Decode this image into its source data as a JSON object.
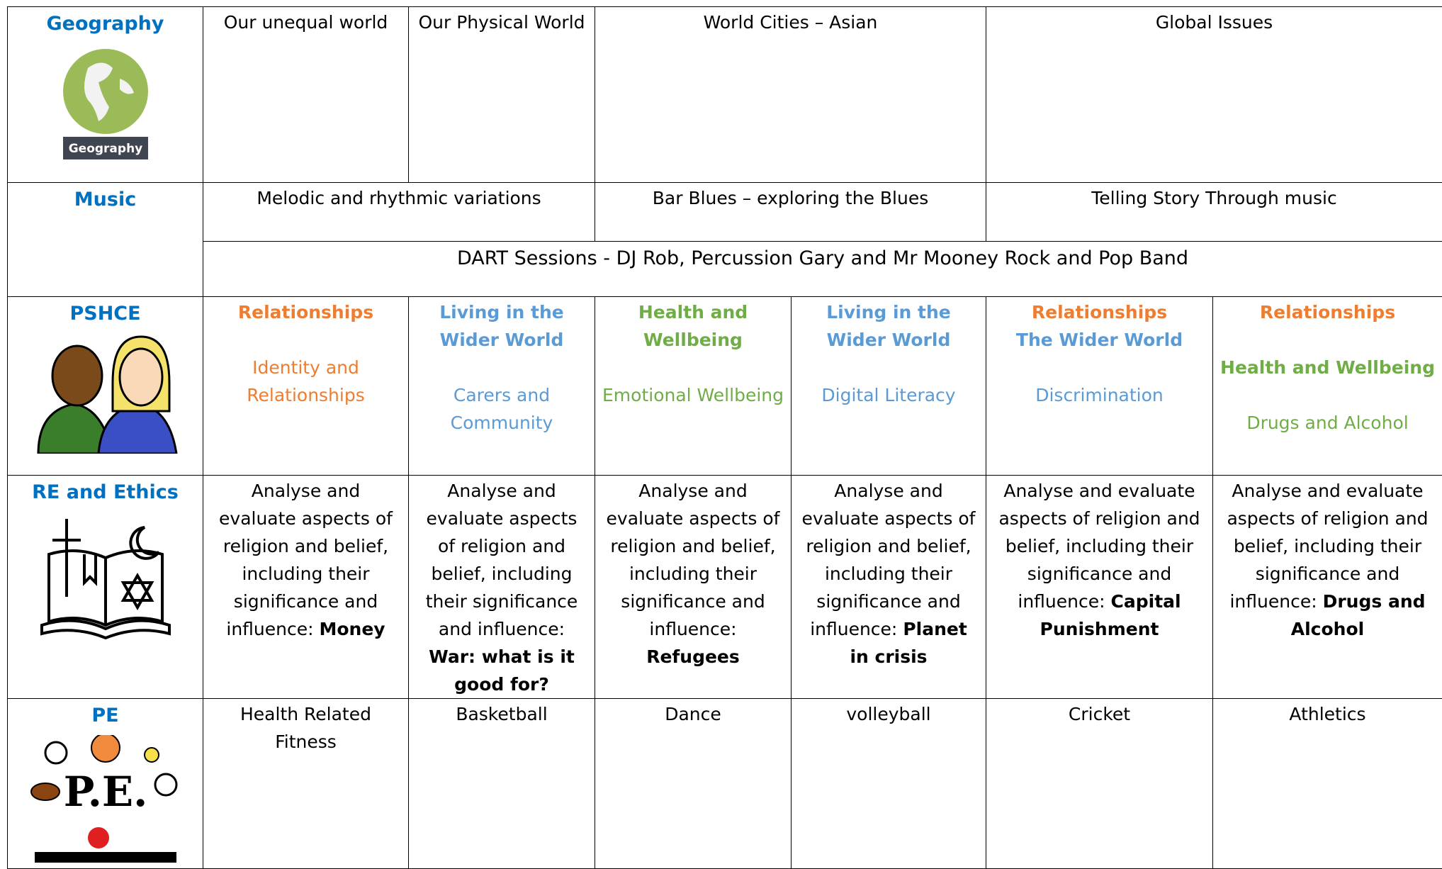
{
  "rows": [
    {
      "subject": "Geography",
      "icon_label": "Geography",
      "cells": [
        "Our unequal world",
        "Our Physical World",
        "World Cities – Asian",
        "Global Issues"
      ]
    },
    {
      "subject": "Music",
      "cells": [
        "Melodic and rhythmic variations",
        "Bar Blues – exploring the Blues",
        "Telling Story Through music"
      ],
      "sessions": "DART Sessions - DJ Rob, Percussion Gary and Mr Mooney Rock and Pop Band"
    },
    {
      "subject": "PSHCE",
      "cells": [
        {
          "lines": [
            "Relationships",
            "Identity and Relationships"
          ]
        },
        {
          "lines": [
            "Living in the Wider World",
            "Carers and Community"
          ]
        },
        {
          "lines": [
            "Health and Wellbeing",
            "Emotional Wellbeing"
          ]
        },
        {
          "lines": [
            "Living in the Wider World",
            "Digital Literacy"
          ]
        },
        {
          "lines": [
            "Relationships",
            "The Wider World",
            "Discrimination"
          ]
        },
        {
          "lines": [
            "Relationships",
            "Health and Wellbeing",
            "Drugs and Alcohol"
          ]
        }
      ]
    },
    {
      "subject": "RE and Ethics",
      "cells": [
        {
          "text": "Analyse and evaluate aspects of religion and belief, including their significance and influence:",
          "bold": "Money"
        },
        {
          "text": "Analyse and evaluate aspects of religion and belief, including their significance and influence:",
          "bold": "War: what is it good for?"
        },
        {
          "text": "Analyse and evaluate aspects of religion and belief, including their significance and influence:",
          "bold": "Refugees"
        },
        {
          "text": "Analyse and evaluate aspects of religion and belief, including their significance and influence:",
          "bold": "Planet in crisis"
        },
        {
          "text": "Analyse and evaluate aspects of religion and belief, including their significance and influence:",
          "bold": "Capital Punishment"
        },
        {
          "text": "Analyse and evaluate aspects of religion and belief, including their significance and influence:",
          "bold": "Drugs and Alcohol"
        }
      ]
    },
    {
      "subject": "PE",
      "cells": [
        "Health Related Fitness",
        "Basketball",
        "Dance",
        "volleyball",
        "Cricket",
        "Athletics"
      ]
    }
  ]
}
